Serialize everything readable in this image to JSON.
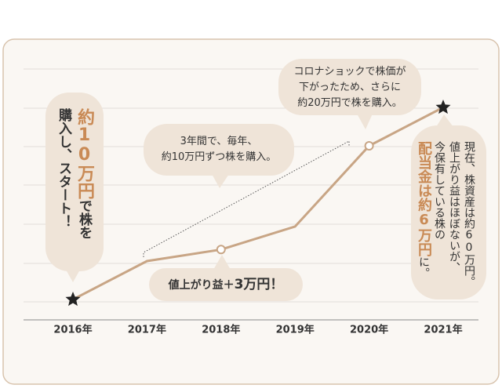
{
  "chart_data": {
    "type": "line",
    "categories": [
      "2016年",
      "2017年",
      "2018年",
      "2019年",
      "2020年",
      "2021年"
    ],
    "series": [
      {
        "color": "#c8a585",
        "values": [
          10,
          20,
          23,
          29,
          50,
          60
        ],
        "markers": [
          "star",
          "none",
          "circle",
          "none",
          "circle",
          "star"
        ]
      }
    ],
    "ylim": [
      0,
      70
    ]
  },
  "callouts": {
    "covid": [
      [
        {
          "text": "コロナショックで株価が"
        }
      ],
      [
        {
          "text": "下がったため、さらに"
        }
      ],
      [
        {
          "text": "約20万円で株を購入。"
        }
      ]
    ],
    "yearly": [
      [
        {
          "text": "3年間で、毎年、"
        }
      ],
      [
        {
          "text": "約10万円ずつ株を購入。"
        }
      ]
    ],
    "gain": [
      [
        {
          "text": "値上がり益＋"
        },
        {
          "text": "3万円！",
          "highlight": true
        }
      ]
    ],
    "start": [
      [
        {
          "text": "約10万円",
          "highlight": true
        },
        {
          "text": "で株を"
        }
      ],
      [
        {
          "text": "購入し、スタート！"
        }
      ]
    ],
    "now": [
      [
        {
          "text": "現在、株資産は約60万円。"
        }
      ],
      [
        {
          "text": "値上がり益はほぼないが、"
        }
      ],
      [
        {
          "text": "今保有している株の"
        }
      ],
      [
        {
          "text": "配当金は約6万円",
          "highlight": true
        },
        {
          "text": "に。"
        }
      ]
    ]
  }
}
